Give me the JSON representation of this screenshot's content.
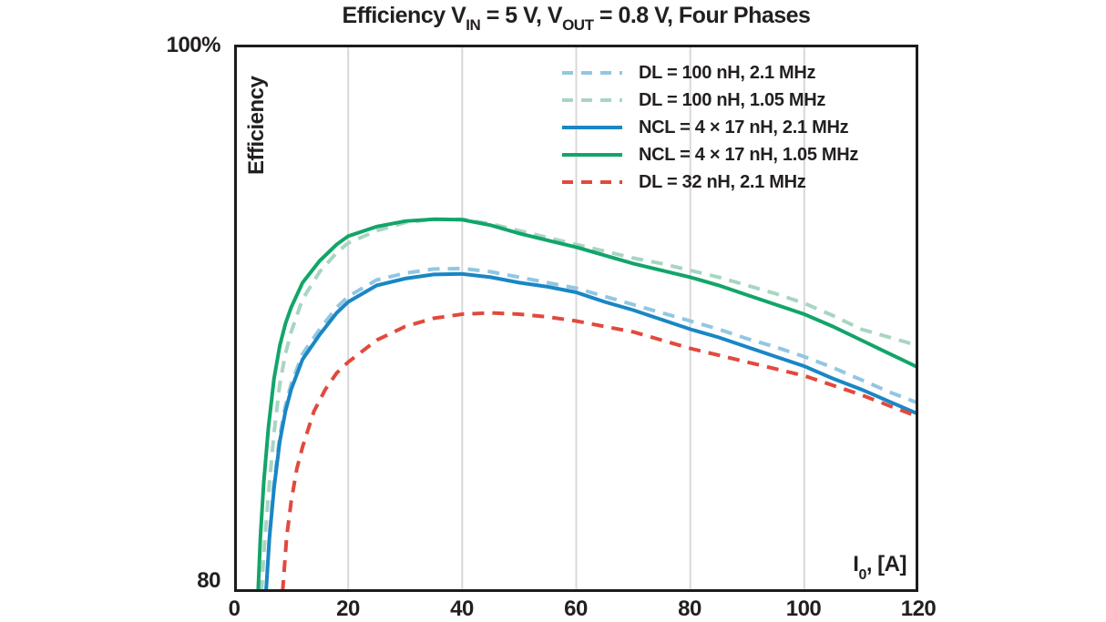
{
  "title": {
    "part1": "Efficiency V",
    "sub1": "IN",
    "part2": " = 5 V, V",
    "sub2": "OUT",
    "part3": " = 0.8 V, Four Phases"
  },
  "y_axis": {
    "top_label": "100%",
    "bottom_label": "80",
    "title": "Efficiency"
  },
  "x_axis": {
    "ticks": [
      "0",
      "20",
      "40",
      "60",
      "80",
      "100",
      "120"
    ],
    "label": {
      "part1": "I",
      "sub": "0",
      "part2": ", [A]"
    }
  },
  "colors": {
    "text": "#231f20",
    "axis": "#1d1b1c",
    "grid": "#d8d8d8",
    "background": "#ffffff",
    "blue": "#1a86c5",
    "green": "#12a568",
    "red": "#e2493d",
    "light_blue": "#92c7e3",
    "light_green": "#a8d5c2"
  },
  "chart_data": {
    "type": "line",
    "title": "Efficiency VIN = 5 V, VOUT = 0.8 V, Four Phases",
    "xlabel": "I0, [A]",
    "ylabel": "Efficiency",
    "xlim": [
      0,
      120
    ],
    "ylim": [
      80,
      100
    ],
    "x_ticks": [
      0,
      20,
      40,
      60,
      80,
      100,
      120
    ],
    "x_gridlines": [
      20,
      40,
      60,
      80,
      100
    ],
    "y_tick_labels": [
      "80",
      "100%"
    ],
    "grid": "vertical-only",
    "legend_position": "top-right-inside",
    "series": [
      {
        "name": "DL = 100 nH, 2.1 MHz",
        "color": "#92c7e3",
        "style": "dashed",
        "points": [
          [
            5.6,
            80
          ],
          [
            6.2,
            82.1
          ],
          [
            7,
            84
          ],
          [
            8,
            85.7
          ],
          [
            9,
            86.8
          ],
          [
            10,
            87.6
          ],
          [
            12,
            88.7
          ],
          [
            15,
            89.6
          ],
          [
            18,
            90.4
          ],
          [
            20,
            90.8
          ],
          [
            25,
            91.4
          ],
          [
            30,
            91.65
          ],
          [
            35,
            91.8
          ],
          [
            40,
            91.82
          ],
          [
            45,
            91.7
          ],
          [
            50,
            91.5
          ],
          [
            55,
            91.3
          ],
          [
            60,
            91.1
          ],
          [
            65,
            90.8
          ],
          [
            70,
            90.5
          ],
          [
            75,
            90.2
          ],
          [
            80,
            89.9
          ],
          [
            85,
            89.6
          ],
          [
            90,
            89.25
          ],
          [
            95,
            88.95
          ],
          [
            100,
            88.6
          ],
          [
            105,
            88.2
          ],
          [
            110,
            87.75
          ],
          [
            115,
            87.3
          ],
          [
            120,
            86.9
          ]
        ]
      },
      {
        "name": "DL = 100 nH, 1.05 MHz",
        "color": "#a8d5c2",
        "style": "dashed",
        "points": [
          [
            4.8,
            80
          ],
          [
            5.4,
            82
          ],
          [
            6.2,
            84
          ],
          [
            7,
            85.8
          ],
          [
            8,
            87.6
          ],
          [
            9,
            88.7
          ],
          [
            10,
            89.5
          ],
          [
            12,
            90.7
          ],
          [
            15,
            91.7
          ],
          [
            18,
            92.4
          ],
          [
            20,
            92.75
          ],
          [
            25,
            93.2
          ],
          [
            30,
            93.5
          ],
          [
            35,
            93.62
          ],
          [
            40,
            93.62
          ],
          [
            45,
            93.45
          ],
          [
            50,
            93.2
          ],
          [
            55,
            92.95
          ],
          [
            60,
            92.7
          ],
          [
            65,
            92.45
          ],
          [
            70,
            92.2
          ],
          [
            75,
            92.0
          ],
          [
            80,
            91.75
          ],
          [
            85,
            91.5
          ],
          [
            90,
            91.2
          ],
          [
            95,
            90.9
          ],
          [
            100,
            90.55
          ],
          [
            105,
            90.1
          ],
          [
            110,
            89.6
          ],
          [
            115,
            89.3
          ],
          [
            120,
            89.0
          ]
        ]
      },
      {
        "name": "NCL = 4 × 17 nH, 2.1 MHz",
        "color": "#1a86c5",
        "style": "solid",
        "points": [
          [
            5.6,
            80
          ],
          [
            6.2,
            82
          ],
          [
            7,
            83.8
          ],
          [
            8,
            85.5
          ],
          [
            9,
            86.6
          ],
          [
            10,
            87.4
          ],
          [
            12,
            88.5
          ],
          [
            15,
            89.4
          ],
          [
            18,
            90.2
          ],
          [
            20,
            90.6
          ],
          [
            25,
            91.2
          ],
          [
            30,
            91.45
          ],
          [
            35,
            91.6
          ],
          [
            40,
            91.62
          ],
          [
            45,
            91.5
          ],
          [
            50,
            91.3
          ],
          [
            55,
            91.15
          ],
          [
            60,
            90.95
          ],
          [
            65,
            90.6
          ],
          [
            70,
            90.3
          ],
          [
            75,
            89.95
          ],
          [
            80,
            89.6
          ],
          [
            85,
            89.3
          ],
          [
            90,
            88.95
          ],
          [
            95,
            88.6
          ],
          [
            100,
            88.25
          ],
          [
            105,
            87.8
          ],
          [
            110,
            87.4
          ],
          [
            115,
            86.95
          ],
          [
            120,
            86.5
          ]
        ]
      },
      {
        "name": "NCL = 4 × 17 nH, 1.05 MHz",
        "color": "#12a568",
        "style": "solid",
        "points": [
          [
            4.2,
            80
          ],
          [
            4.6,
            82
          ],
          [
            5.2,
            84
          ],
          [
            6,
            86
          ],
          [
            7,
            87.8
          ],
          [
            8,
            89
          ],
          [
            9,
            89.8
          ],
          [
            10,
            90.4
          ],
          [
            12,
            91.3
          ],
          [
            15,
            92.1
          ],
          [
            18,
            92.7
          ],
          [
            20,
            93.0
          ],
          [
            25,
            93.35
          ],
          [
            30,
            93.55
          ],
          [
            35,
            93.62
          ],
          [
            40,
            93.6
          ],
          [
            45,
            93.4
          ],
          [
            50,
            93.1
          ],
          [
            55,
            92.85
          ],
          [
            60,
            92.6
          ],
          [
            65,
            92.3
          ],
          [
            70,
            92.0
          ],
          [
            75,
            91.75
          ],
          [
            80,
            91.5
          ],
          [
            85,
            91.2
          ],
          [
            90,
            90.85
          ],
          [
            95,
            90.5
          ],
          [
            100,
            90.15
          ],
          [
            105,
            89.7
          ],
          [
            110,
            89.2
          ],
          [
            115,
            88.7
          ],
          [
            120,
            88.2
          ]
        ]
      },
      {
        "name": "DL = 32 nH, 2.1 MHz",
        "color": "#e2493d",
        "style": "dashed",
        "points": [
          [
            8.5,
            80
          ],
          [
            9.2,
            82
          ],
          [
            10,
            83.3
          ],
          [
            11,
            84.5
          ],
          [
            12,
            85.3
          ],
          [
            14,
            86.6
          ],
          [
            16,
            87.4
          ],
          [
            18,
            88.0
          ],
          [
            20,
            88.4
          ],
          [
            25,
            89.2
          ],
          [
            30,
            89.7
          ],
          [
            35,
            90.0
          ],
          [
            40,
            90.15
          ],
          [
            45,
            90.2
          ],
          [
            50,
            90.15
          ],
          [
            55,
            90.05
          ],
          [
            60,
            89.9
          ],
          [
            65,
            89.7
          ],
          [
            70,
            89.5
          ],
          [
            75,
            89.2
          ],
          [
            80,
            88.9
          ],
          [
            85,
            88.65
          ],
          [
            90,
            88.4
          ],
          [
            95,
            88.15
          ],
          [
            100,
            87.9
          ],
          [
            105,
            87.55
          ],
          [
            110,
            87.2
          ],
          [
            115,
            86.8
          ],
          [
            120,
            86.4
          ]
        ]
      }
    ]
  }
}
